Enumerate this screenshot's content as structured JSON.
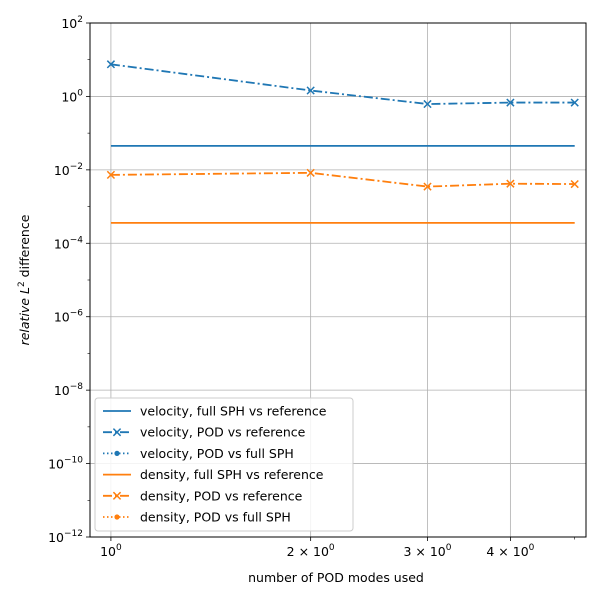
{
  "chart_data": {
    "type": "line",
    "xscale": "log",
    "yscale": "log",
    "xlabel": "number of POD modes used",
    "ylabel_prefix": "relative L",
    "ylabel_sup": "2",
    "ylabel_suffix": " difference",
    "xlim": [
      0.93,
      5.2
    ],
    "ylim": [
      1e-12,
      100
    ],
    "grid": true,
    "legend_position": "lower-left",
    "x_ticks": [
      {
        "value": 1,
        "base": "10",
        "exp": "0"
      },
      {
        "value": 2,
        "base": "2 × 10",
        "exp": "0"
      },
      {
        "value": 3,
        "base": "3 × 10",
        "exp": "0"
      },
      {
        "value": 4,
        "base": "4 × 10",
        "exp": "0"
      }
    ],
    "x_minor_ticks": [
      5
    ],
    "y_ticks": [
      {
        "value": 1e-12,
        "base": "10",
        "exp": "−12"
      },
      {
        "value": 1e-10,
        "base": "10",
        "exp": "−10"
      },
      {
        "value": 1e-08,
        "base": "10",
        "exp": "−8"
      },
      {
        "value": 1e-06,
        "base": "10",
        "exp": "−6"
      },
      {
        "value": 0.0001,
        "base": "10",
        "exp": "−4"
      },
      {
        "value": 0.01,
        "base": "10",
        "exp": "−2"
      },
      {
        "value": 1,
        "base": "10",
        "exp": "0"
      },
      {
        "value": 100,
        "base": "10",
        "exp": "2"
      }
    ],
    "series": [
      {
        "name": "velocity, full SPH vs reference",
        "color": "#1f77b4",
        "style": "solid",
        "marker": "none",
        "x": [
          1,
          5
        ],
        "y": [
          0.045,
          0.045
        ]
      },
      {
        "name": "velocity, POD vs reference",
        "color": "#1f77b4",
        "style": "dashdot",
        "marker": "x",
        "x": [
          1,
          2,
          3,
          4,
          5
        ],
        "y": [
          7.5,
          1.45,
          0.62,
          0.68,
          0.68
        ]
      },
      {
        "name": "velocity, POD vs full SPH",
        "color": "#1f77b4",
        "style": "dotted",
        "marker": "dot",
        "x": [],
        "y": []
      },
      {
        "name": "density, full SPH vs reference",
        "color": "#ff7f0e",
        "style": "solid",
        "marker": "none",
        "x": [
          1,
          5
        ],
        "y": [
          0.00036,
          0.00036
        ]
      },
      {
        "name": "density, POD vs reference",
        "color": "#ff7f0e",
        "style": "dashdot",
        "marker": "x",
        "x": [
          1,
          2,
          3,
          4,
          5
        ],
        "y": [
          0.0073,
          0.0083,
          0.0035,
          0.0042,
          0.0041
        ]
      },
      {
        "name": "density, POD vs full SPH",
        "color": "#ff7f0e",
        "style": "dotted",
        "marker": "dot",
        "x": [],
        "y": []
      }
    ]
  }
}
